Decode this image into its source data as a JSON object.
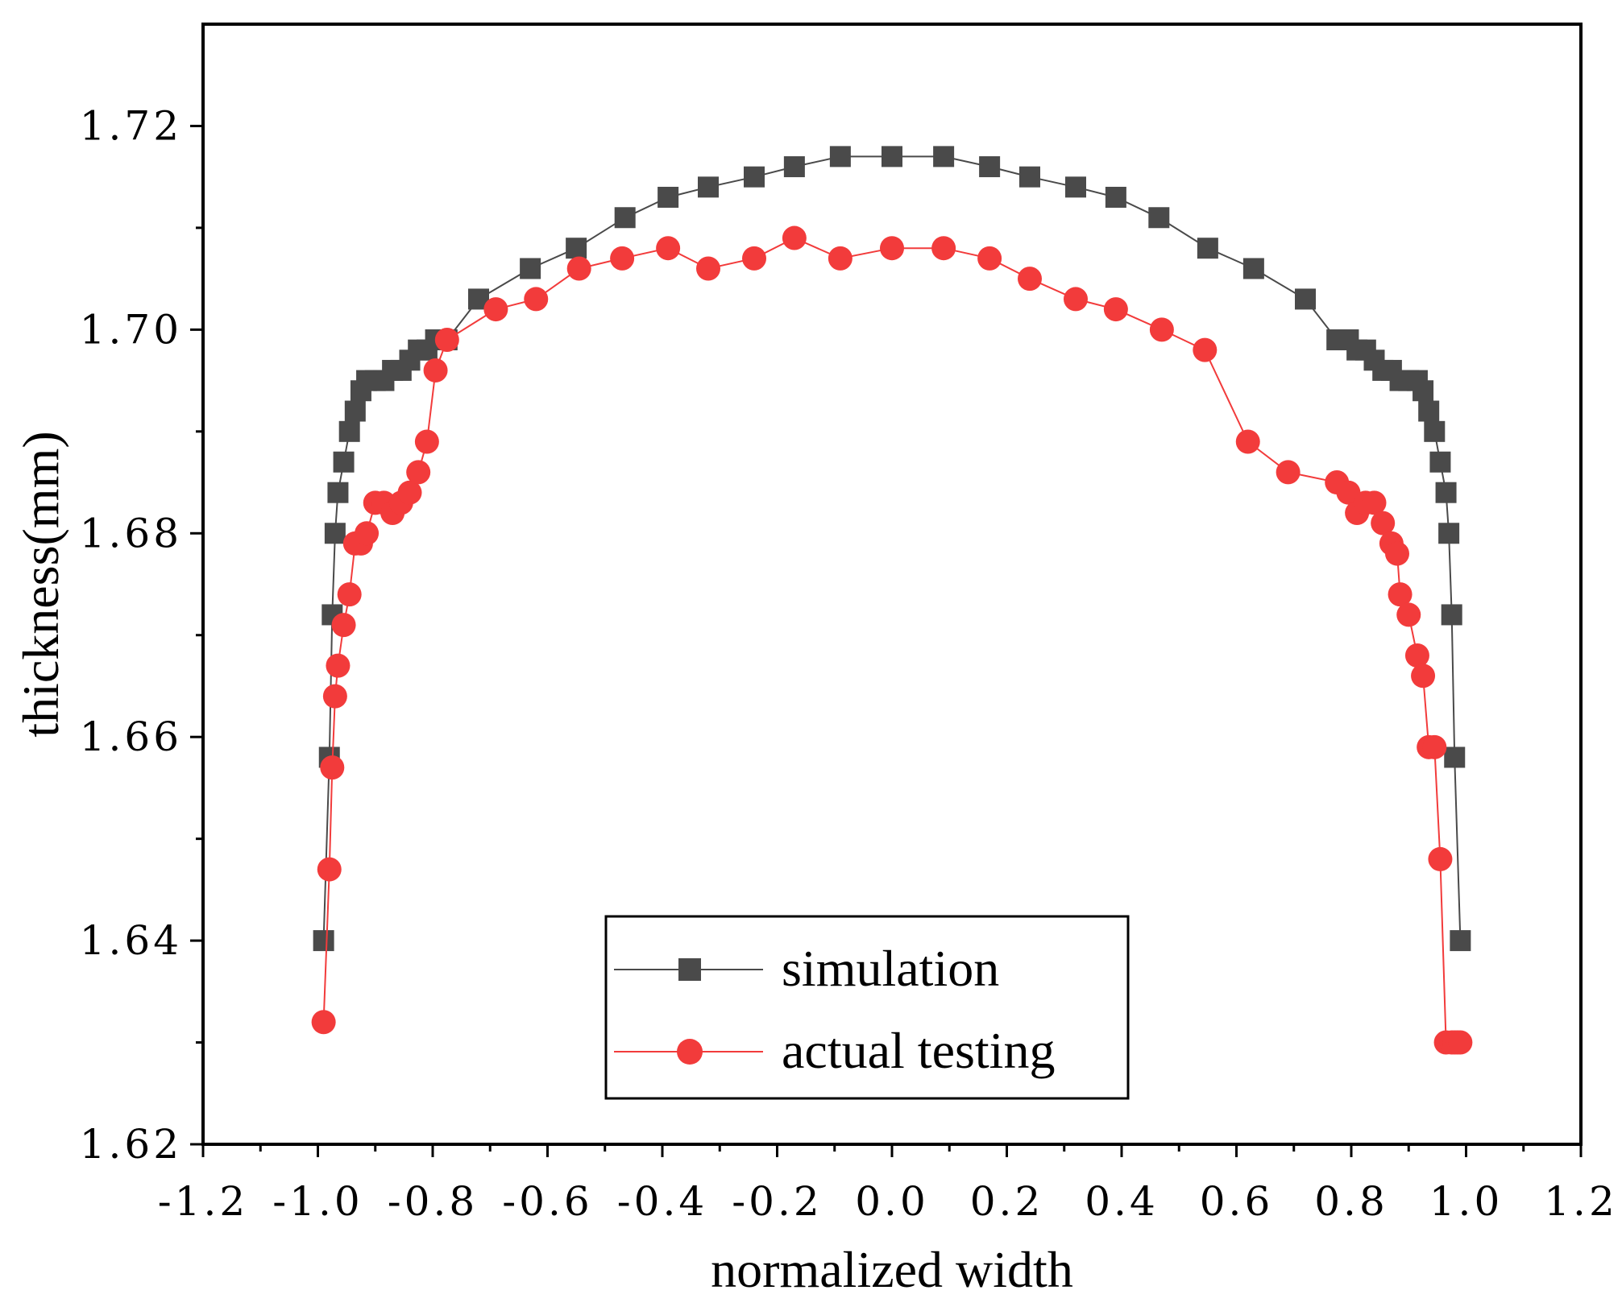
{
  "chart_data": {
    "type": "line",
    "title": "",
    "xlabel": "normalized width",
    "ylabel": "thickness(mm)",
    "xlim": [
      -1.2,
      1.2
    ],
    "ylim": [
      1.62,
      1.73
    ],
    "x_ticks": [
      -1.2,
      -1.0,
      -0.8,
      -0.6,
      -0.4,
      -0.2,
      0.0,
      0.2,
      0.4,
      0.6,
      0.8,
      1.0,
      1.2
    ],
    "x_tick_labels": [
      "-1.2",
      "-1.0",
      "-0.8",
      "-0.6",
      "-0.4",
      "-0.2",
      "0.0",
      "0.2",
      "0.4",
      "0.6",
      "0.8",
      "1.0",
      "1.2"
    ],
    "y_ticks": [
      1.62,
      1.64,
      1.66,
      1.68,
      1.7,
      1.72
    ],
    "y_tick_labels": [
      "1.62",
      "1.64",
      "1.66",
      "1.68",
      "1.70",
      "1.72"
    ],
    "grid": false,
    "legend_position": "bottom-center",
    "series": [
      {
        "name": "simulation",
        "color": "#4a4a4a",
        "marker": "square",
        "x": [
          -0.99,
          -0.98,
          -0.975,
          -0.97,
          -0.965,
          -0.955,
          -0.945,
          -0.935,
          -0.925,
          -0.915,
          -0.9,
          -0.885,
          -0.87,
          -0.855,
          -0.84,
          -0.825,
          -0.81,
          -0.795,
          -0.775,
          -0.72,
          -0.63,
          -0.55,
          -0.465,
          -0.39,
          -0.32,
          -0.24,
          -0.17,
          -0.09,
          0.0,
          0.09,
          0.17,
          0.24,
          0.32,
          0.39,
          0.465,
          0.55,
          0.63,
          0.72,
          0.775,
          0.795,
          0.81,
          0.825,
          0.84,
          0.855,
          0.87,
          0.885,
          0.9,
          0.915,
          0.925,
          0.935,
          0.945,
          0.955,
          0.965,
          0.97,
          0.975,
          0.98,
          0.99
        ],
        "y": [
          1.64,
          1.658,
          1.672,
          1.68,
          1.684,
          1.687,
          1.69,
          1.692,
          1.694,
          1.695,
          1.695,
          1.695,
          1.696,
          1.696,
          1.697,
          1.698,
          1.698,
          1.699,
          1.699,
          1.703,
          1.706,
          1.708,
          1.711,
          1.713,
          1.714,
          1.715,
          1.716,
          1.717,
          1.717,
          1.717,
          1.716,
          1.715,
          1.714,
          1.713,
          1.711,
          1.708,
          1.706,
          1.703,
          1.699,
          1.699,
          1.698,
          1.698,
          1.697,
          1.696,
          1.696,
          1.695,
          1.695,
          1.695,
          1.694,
          1.692,
          1.69,
          1.687,
          1.684,
          1.68,
          1.672,
          1.658,
          1.64
        ]
      },
      {
        "name": "actual testing",
        "color": "#f23b3b",
        "marker": "circle",
        "x": [
          -0.99,
          -0.98,
          -0.975,
          -0.97,
          -0.965,
          -0.955,
          -0.945,
          -0.935,
          -0.925,
          -0.915,
          -0.9,
          -0.885,
          -0.87,
          -0.855,
          -0.84,
          -0.825,
          -0.81,
          -0.795,
          -0.775,
          -0.69,
          -0.62,
          -0.545,
          -0.47,
          -0.39,
          -0.32,
          -0.24,
          -0.17,
          -0.09,
          0.0,
          0.09,
          0.17,
          0.24,
          0.32,
          0.39,
          0.47,
          0.545,
          0.62,
          0.69,
          0.775,
          0.795,
          0.81,
          0.825,
          0.84,
          0.855,
          0.87,
          0.88,
          0.885,
          0.9,
          0.915,
          0.925,
          0.935,
          0.945,
          0.955,
          0.965,
          0.975,
          0.98,
          0.985,
          0.99
        ],
        "y": [
          1.632,
          1.647,
          1.657,
          1.664,
          1.667,
          1.671,
          1.674,
          1.679,
          1.679,
          1.68,
          1.683,
          1.683,
          1.682,
          1.683,
          1.684,
          1.686,
          1.689,
          1.696,
          1.699,
          1.702,
          1.703,
          1.706,
          1.707,
          1.708,
          1.706,
          1.707,
          1.709,
          1.707,
          1.708,
          1.708,
          1.707,
          1.705,
          1.703,
          1.702,
          1.7,
          1.698,
          1.689,
          1.686,
          1.685,
          1.684,
          1.682,
          1.683,
          1.683,
          1.681,
          1.679,
          1.678,
          1.674,
          1.672,
          1.668,
          1.666,
          1.659,
          1.659,
          1.648,
          1.63,
          1.63,
          1.63,
          1.63,
          1.63
        ]
      }
    ]
  }
}
